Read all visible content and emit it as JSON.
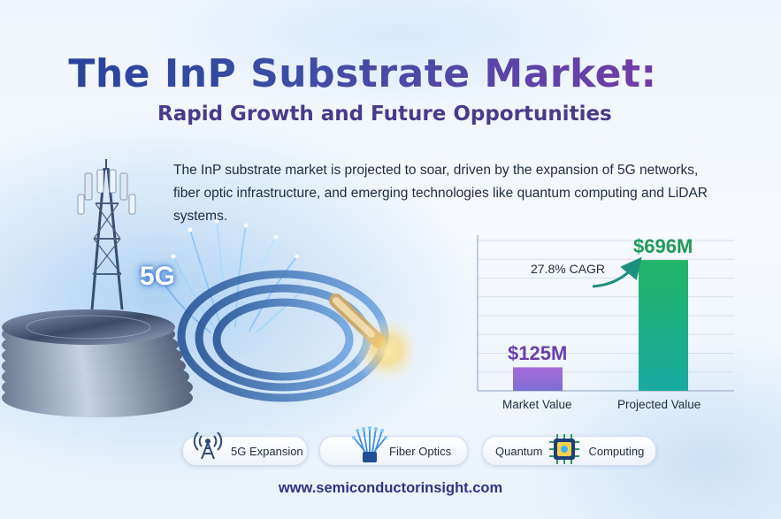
{
  "header": {
    "title": "The InP Substrate Market:",
    "subtitle": "Rapid Growth and Future Opportunities"
  },
  "description": {
    "line1": "The InP substrate market is projected to soar, driven by the expansion of 5G networks,",
    "line2": "fiber optic infrastructure, and emerging technologies like quantum computing and LiDAR systems."
  },
  "illustration": {
    "tower_label": "5G",
    "icons": [
      "cell-tower-icon",
      "wafer-stack-icon",
      "fiber-optic-cable-icon"
    ]
  },
  "chart_data": {
    "type": "bar",
    "categories": [
      "Market Value",
      "Projected Value"
    ],
    "values": [
      125,
      696
    ],
    "value_labels": [
      "$125M",
      "$696M"
    ],
    "annotation": "27.8% CAGR",
    "ylim": [
      0,
      800
    ],
    "colors": [
      "#9b5ed0",
      "#23b06e"
    ],
    "grid": true
  },
  "features": [
    {
      "label": "5G Expansion",
      "icon": "antenna-icon"
    },
    {
      "label": "Fiber Optics",
      "icon": "fiber-icon"
    },
    {
      "label_left": "Quantum",
      "label_right": "Computing",
      "icon": "chip-icon"
    }
  ],
  "footer": {
    "url": "www.semiconductorinsight.com"
  }
}
